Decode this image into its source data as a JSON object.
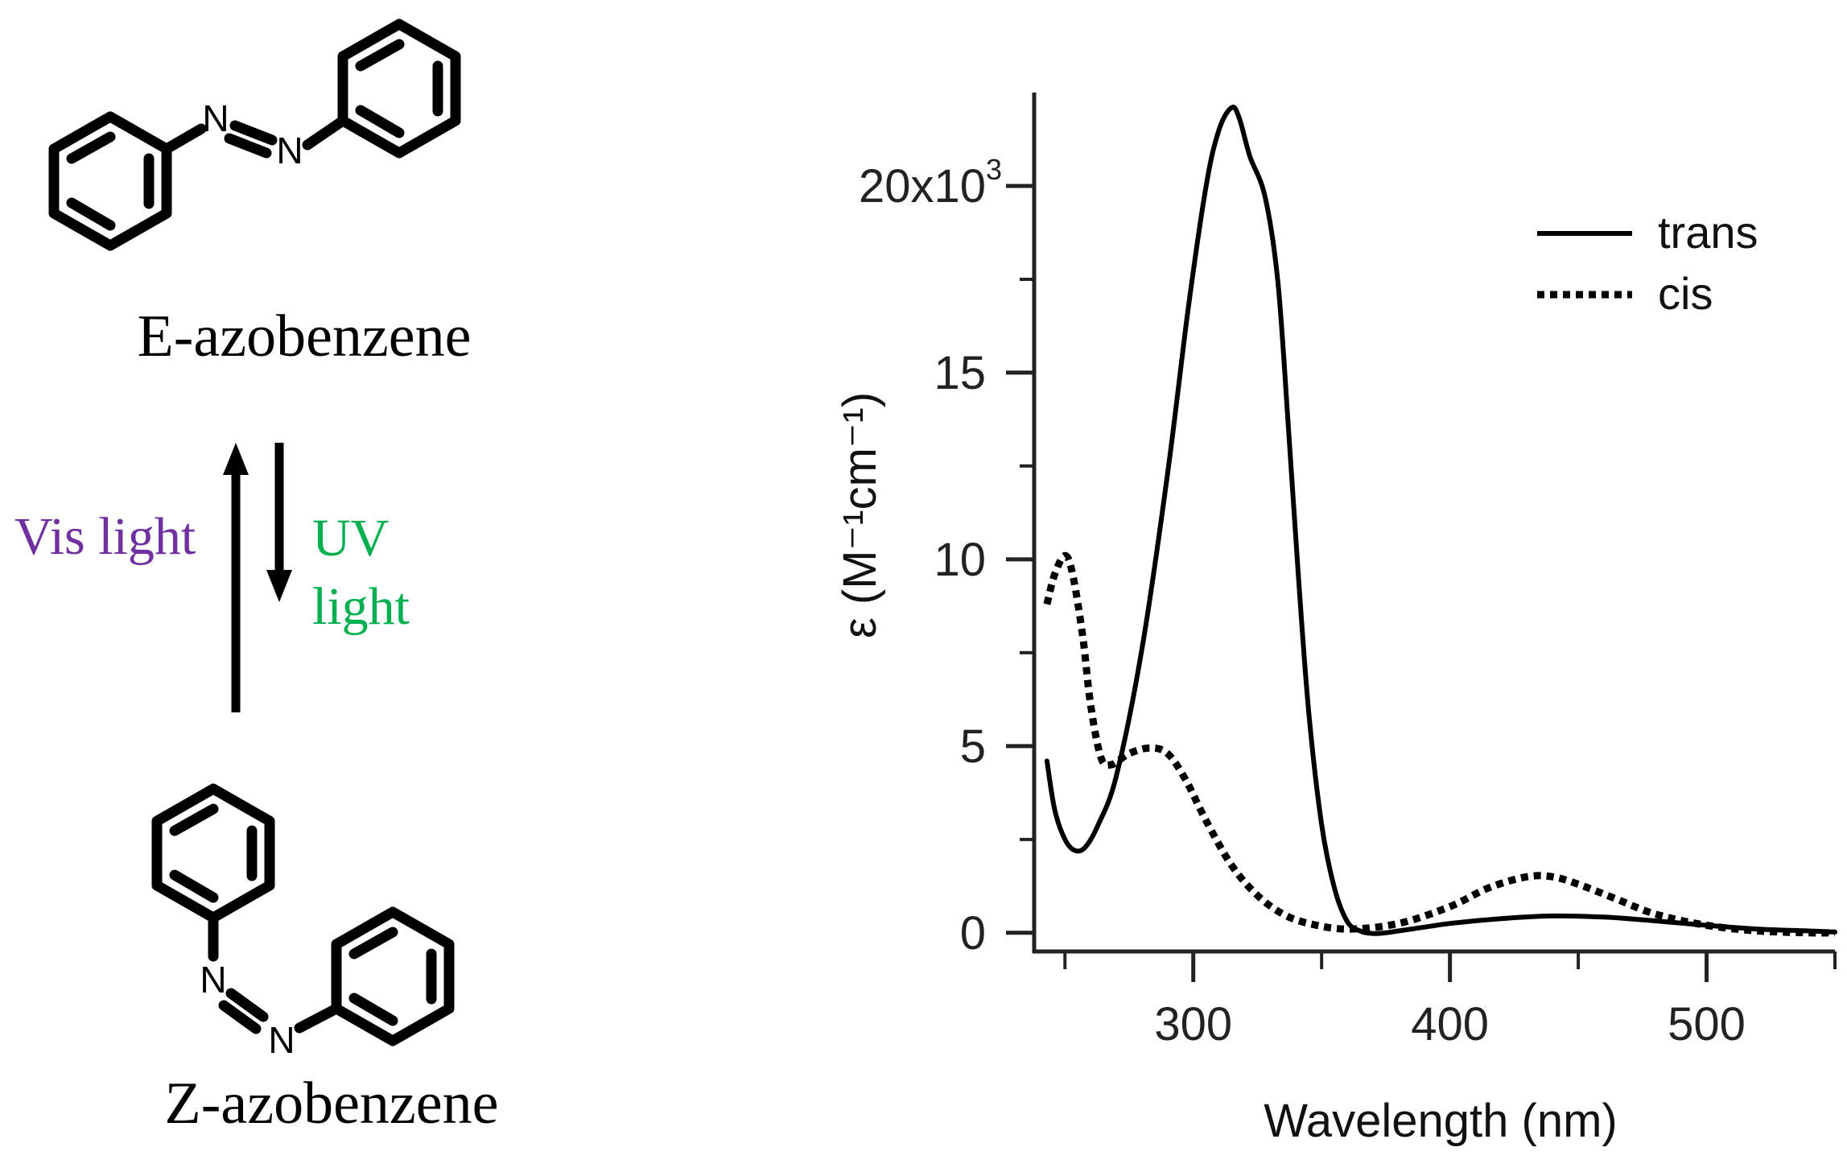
{
  "scheme": {
    "e_label": "E-azobenzene",
    "z_label": "Z-azobenzene",
    "vis_label": "Vis light",
    "uv_label_line1": "UV",
    "uv_label_line2": "light",
    "atom_n": "N",
    "colors": {
      "vis": "#7030a0",
      "uv": "#00b050",
      "structure": "#000000"
    }
  },
  "chart_data": {
    "type": "line",
    "title": "",
    "xlabel": "Wavelength (nm)",
    "ylabel": "ε (M⁻¹cm⁻¹)",
    "xlim": [
      238,
      550
    ],
    "ylim": [
      -0.5,
      22.5
    ],
    "xticks": [
      300,
      400,
      500
    ],
    "xtick_labels": [
      "300",
      "400",
      "500"
    ],
    "yticks": [
      0,
      5,
      10,
      15,
      20
    ],
    "ytick_labels": [
      "0",
      "5",
      "10",
      "15",
      "20x10"
    ],
    "ytick_top_exponent": "3",
    "grid": false,
    "legend_position": "top-right",
    "series": [
      {
        "name": "trans",
        "style": "solid",
        "x": [
          243,
          246,
          250,
          254,
          258,
          263,
          270,
          280,
          290,
          298,
          305,
          310,
          315,
          318,
          322,
          328,
          333,
          337,
          341,
          345,
          350,
          355,
          360,
          365,
          370,
          375,
          380,
          390,
          400,
          420,
          440,
          460,
          480,
          500,
          520,
          540,
          550
        ],
        "y": [
          4.6,
          3.3,
          2.5,
          2.2,
          2.3,
          2.9,
          4.2,
          7.6,
          12.3,
          16.7,
          20.0,
          21.5,
          22.1,
          21.8,
          20.8,
          19.7,
          17.4,
          13.6,
          9.5,
          5.9,
          2.9,
          1.2,
          0.3,
          0.05,
          -0.02,
          0.0,
          0.05,
          0.15,
          0.25,
          0.38,
          0.45,
          0.42,
          0.32,
          0.2,
          0.1,
          0.05,
          0.02
        ]
      },
      {
        "name": "cis",
        "style": "dotted",
        "x": [
          243,
          246,
          250,
          253,
          257,
          260,
          264,
          268,
          275,
          283,
          290,
          297,
          305,
          315,
          325,
          335,
          345,
          360,
          380,
          400,
          415,
          430,
          440,
          450,
          465,
          480,
          500,
          520,
          540,
          550
        ],
        "y": [
          8.8,
          9.6,
          10.1,
          9.6,
          7.9,
          6.1,
          4.7,
          4.5,
          4.8,
          4.95,
          4.8,
          4.1,
          3.0,
          1.8,
          1.0,
          0.5,
          0.25,
          0.1,
          0.25,
          0.7,
          1.2,
          1.5,
          1.5,
          1.3,
          0.9,
          0.5,
          0.2,
          0.05,
          0.0,
          0.0
        ]
      }
    ]
  }
}
